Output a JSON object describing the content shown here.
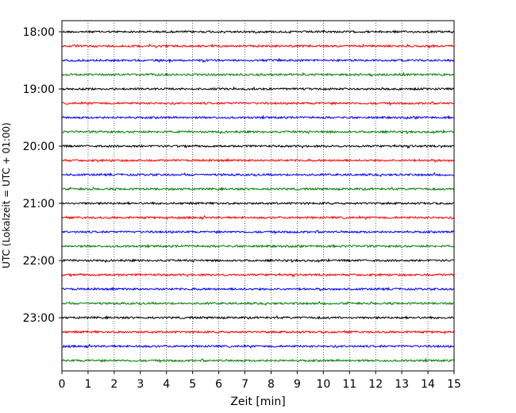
{
  "chart_data": {
    "type": "line",
    "subtype": "helicorder",
    "xlabel": "Zeit  [min]",
    "ylabel": "UTC (Lokalzeit = UTC + 01:00)",
    "xlim": [
      0,
      15
    ],
    "x_ticks": [
      "0",
      "1",
      "2",
      "3",
      "4",
      "5",
      "6",
      "7",
      "8",
      "9",
      "10",
      "11",
      "12",
      "13",
      "14",
      "15"
    ],
    "y_ticks": [
      "18:00",
      "19:00",
      "20:00",
      "21:00",
      "22:00",
      "23:00"
    ],
    "grid": "vertical dotted at each minute",
    "row_interval_minutes": 15,
    "start_time": "18:00",
    "trace_colors": [
      "#000000",
      "#ff0000",
      "#0000ff",
      "#008000"
    ],
    "traces": [
      {
        "start": "18:00",
        "color": "#000000"
      },
      {
        "start": "18:15",
        "color": "#ff0000"
      },
      {
        "start": "18:30",
        "color": "#0000ff"
      },
      {
        "start": "18:45",
        "color": "#008000"
      },
      {
        "start": "19:00",
        "color": "#000000"
      },
      {
        "start": "19:15",
        "color": "#ff0000"
      },
      {
        "start": "19:30",
        "color": "#0000ff"
      },
      {
        "start": "19:45",
        "color": "#008000"
      },
      {
        "start": "20:00",
        "color": "#000000"
      },
      {
        "start": "20:15",
        "color": "#ff0000"
      },
      {
        "start": "20:30",
        "color": "#0000ff"
      },
      {
        "start": "20:45",
        "color": "#008000"
      },
      {
        "start": "21:00",
        "color": "#000000"
      },
      {
        "start": "21:15",
        "color": "#ff0000"
      },
      {
        "start": "21:30",
        "color": "#0000ff"
      },
      {
        "start": "21:45",
        "color": "#008000"
      },
      {
        "start": "22:00",
        "color": "#000000"
      },
      {
        "start": "22:15",
        "color": "#ff0000"
      },
      {
        "start": "22:30",
        "color": "#0000ff"
      },
      {
        "start": "22:45",
        "color": "#008000"
      },
      {
        "start": "23:00",
        "color": "#000000"
      },
      {
        "start": "23:15",
        "color": "#ff0000"
      },
      {
        "start": "23:30",
        "color": "#0000ff"
      },
      {
        "start": "23:45",
        "color": "#008000"
      }
    ]
  }
}
